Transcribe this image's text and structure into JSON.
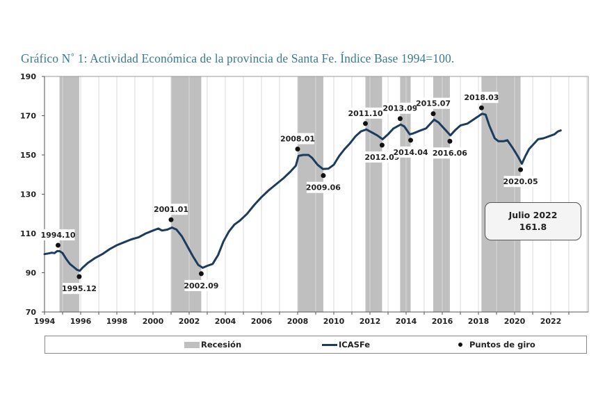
{
  "title": "Gráfico N˚ 1: Actividad Económica de la provincia de Santa Fe. Índice Base 1994=100.",
  "callout": {
    "line1": "Julio 2022",
    "line2": "161.8"
  },
  "legend": {
    "recession": "Recesión",
    "series": "ICASFe",
    "turning_points": "Puntos de giro"
  },
  "colors": {
    "title": "#3a7a93",
    "line": "#1d3b5c",
    "recession": "#bfbfbf",
    "dot": "#111111",
    "grid": "#d9d9d9"
  },
  "chart_data": {
    "type": "line",
    "title": "Gráfico N˚ 1: Actividad Económica de la provincia de Santa Fe. Índice Base 1994=100.",
    "xlabel": "",
    "ylabel": "",
    "xlim": [
      1994,
      2024
    ],
    "ylim": [
      70,
      190
    ],
    "xticks": [
      "1994",
      "1996",
      "1998",
      "2000",
      "2002",
      "2004",
      "2006",
      "2008",
      "2010",
      "2012",
      "2014",
      "2016",
      "2018",
      "2020",
      "2022"
    ],
    "yticks": [
      "70",
      "90",
      "110",
      "130",
      "150",
      "170",
      "190"
    ],
    "grid": "vertical",
    "legend_position": "bottom",
    "series": [
      {
        "name": "ICASFe",
        "points": [
          [
            1994.0,
            99.5
          ],
          [
            1994.2,
            99.8
          ],
          [
            1994.4,
            100.2
          ],
          [
            1994.55,
            100.0
          ],
          [
            1994.7,
            101.0
          ],
          [
            1994.83,
            101.0
          ],
          [
            1995.0,
            100.0
          ],
          [
            1995.2,
            97.0
          ],
          [
            1995.4,
            94.5
          ],
          [
            1995.6,
            93.0
          ],
          [
            1995.8,
            91.5
          ],
          [
            1995.95,
            91.0
          ],
          [
            1996.1,
            92.5
          ],
          [
            1996.4,
            95.0
          ],
          [
            1996.8,
            97.5
          ],
          [
            1997.2,
            99.5
          ],
          [
            1997.6,
            102.0
          ],
          [
            1998.0,
            104.0
          ],
          [
            1998.4,
            105.5
          ],
          [
            1998.8,
            107.0
          ],
          [
            1999.2,
            108.0
          ],
          [
            1999.6,
            110.0
          ],
          [
            2000.0,
            111.5
          ],
          [
            2000.3,
            112.5
          ],
          [
            2000.5,
            111.5
          ],
          [
            2000.8,
            112.0
          ],
          [
            2001.05,
            113.0
          ],
          [
            2001.3,
            112.0
          ],
          [
            2001.6,
            108.5
          ],
          [
            2001.9,
            103.5
          ],
          [
            2002.2,
            98.5
          ],
          [
            2002.5,
            94.0
          ],
          [
            2002.75,
            92.5
          ],
          [
            2003.0,
            93.5
          ],
          [
            2003.3,
            94.5
          ],
          [
            2003.6,
            99.0
          ],
          [
            2003.9,
            106.0
          ],
          [
            2004.2,
            111.0
          ],
          [
            2004.5,
            114.5
          ],
          [
            2004.8,
            116.5
          ],
          [
            2005.2,
            120.0
          ],
          [
            2005.6,
            124.5
          ],
          [
            2006.0,
            128.5
          ],
          [
            2006.4,
            132.0
          ],
          [
            2006.8,
            135.0
          ],
          [
            2007.2,
            138.0
          ],
          [
            2007.6,
            141.5
          ],
          [
            2007.9,
            144.5
          ],
          [
            2008.05,
            149.5
          ],
          [
            2008.3,
            150.0
          ],
          [
            2008.6,
            150.0
          ],
          [
            2008.8,
            148.5
          ],
          [
            2009.1,
            145.0
          ],
          [
            2009.4,
            142.8
          ],
          [
            2009.7,
            143.0
          ],
          [
            2010.0,
            145.0
          ],
          [
            2010.3,
            149.5
          ],
          [
            2010.6,
            153.0
          ],
          [
            2010.9,
            156.0
          ],
          [
            2011.2,
            159.5
          ],
          [
            2011.5,
            162.0
          ],
          [
            2011.8,
            163.0
          ],
          [
            2012.1,
            161.5
          ],
          [
            2012.4,
            160.0
          ],
          [
            2012.7,
            158.0
          ],
          [
            2013.0,
            160.5
          ],
          [
            2013.3,
            163.5
          ],
          [
            2013.7,
            165.5
          ],
          [
            2013.9,
            164.5
          ],
          [
            2014.2,
            160.5
          ],
          [
            2014.4,
            161.0
          ],
          [
            2014.8,
            162.5
          ],
          [
            2015.1,
            163.5
          ],
          [
            2015.3,
            165.5
          ],
          [
            2015.55,
            168.0
          ],
          [
            2015.8,
            166.5
          ],
          [
            2016.1,
            163.5
          ],
          [
            2016.45,
            160.0
          ],
          [
            2016.7,
            162.5
          ],
          [
            2017.0,
            165.0
          ],
          [
            2017.4,
            166.0
          ],
          [
            2017.8,
            168.5
          ],
          [
            2018.2,
            171.0
          ],
          [
            2018.4,
            170.5
          ],
          [
            2018.6,
            165.0
          ],
          [
            2018.9,
            158.5
          ],
          [
            2019.1,
            157.0
          ],
          [
            2019.4,
            157.0
          ],
          [
            2019.6,
            157.5
          ],
          [
            2019.9,
            153.5
          ],
          [
            2020.2,
            149.0
          ],
          [
            2020.4,
            145.5
          ],
          [
            2020.6,
            149.5
          ],
          [
            2020.8,
            153.0
          ],
          [
            2021.0,
            155.0
          ],
          [
            2021.3,
            158.0
          ],
          [
            2021.6,
            158.5
          ],
          [
            2021.9,
            159.5
          ],
          [
            2022.2,
            160.5
          ],
          [
            2022.4,
            162.0
          ],
          [
            2022.55,
            162.5
          ]
        ]
      }
    ],
    "recessions": [
      {
        "start": 1994.83,
        "end": 1995.92
      },
      {
        "start": 2001.0,
        "end": 2002.67
      },
      {
        "start": 2008.0,
        "end": 2009.42
      },
      {
        "start": 2011.75,
        "end": 2012.67
      },
      {
        "start": 2013.67,
        "end": 2014.25
      },
      {
        "start": 2015.5,
        "end": 2016.42
      },
      {
        "start": 2018.17,
        "end": 2020.33
      }
    ],
    "turning_points": [
      {
        "label": "1994.10",
        "x": 1994.75,
        "y": 104.0,
        "pos": "above"
      },
      {
        "label": "1995.12",
        "x": 1995.92,
        "y": 88.0,
        "pos": "below"
      },
      {
        "label": "2001.01",
        "x": 2001.0,
        "y": 117.0,
        "pos": "above"
      },
      {
        "label": "2002.09",
        "x": 2002.67,
        "y": 89.5,
        "pos": "below"
      },
      {
        "label": "2008.01",
        "x": 2008.0,
        "y": 153.0,
        "pos": "above"
      },
      {
        "label": "2009.06",
        "x": 2009.42,
        "y": 139.5,
        "pos": "below"
      },
      {
        "label": "2011.10",
        "x": 2011.75,
        "y": 166.0,
        "pos": "above"
      },
      {
        "label": "2012.09",
        "x": 2012.67,
        "y": 155.0,
        "pos": "below"
      },
      {
        "label": "2013.09",
        "x": 2013.67,
        "y": 168.5,
        "pos": "above"
      },
      {
        "label": "2014.04",
        "x": 2014.25,
        "y": 157.5,
        "pos": "below"
      },
      {
        "label": "2015.07",
        "x": 2015.5,
        "y": 171.0,
        "pos": "above"
      },
      {
        "label": "2016.06",
        "x": 2016.42,
        "y": 157.0,
        "pos": "below"
      },
      {
        "label": "2018.03",
        "x": 2018.17,
        "y": 174.0,
        "pos": "above"
      },
      {
        "label": "2020.05",
        "x": 2020.33,
        "y": 142.5,
        "pos": "below"
      }
    ],
    "annotation": {
      "text": "Julio 2022",
      "value": 161.8
    }
  }
}
